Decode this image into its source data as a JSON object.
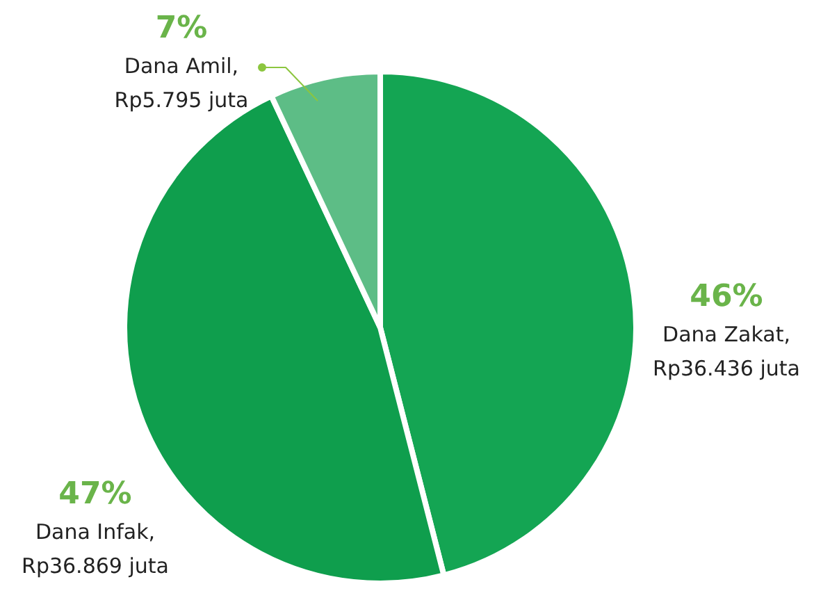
{
  "chart_data": {
    "type": "pie",
    "categories": [
      "Dana Zakat,\nRp36.436 juta",
      "Dana Infak,\nRp36.869 juta",
      "Dana Amil,\nRp5.795 juta"
    ],
    "values": [
      46,
      47,
      7
    ],
    "value_labels": [
      "46%",
      "47%",
      "7%"
    ],
    "colors": [
      "#14a553",
      "#0f9e4d",
      "#5dbd86"
    ]
  }
}
